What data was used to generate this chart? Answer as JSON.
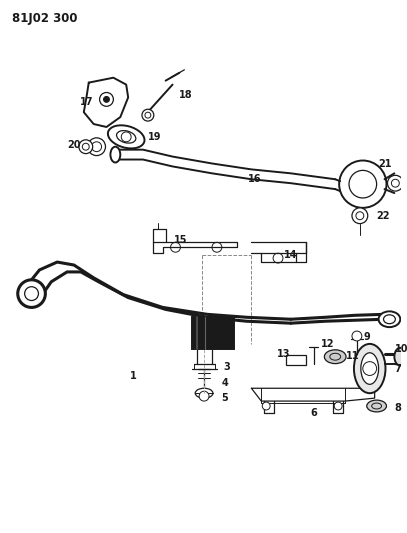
{
  "title": "81J02 300",
  "bg_color": "#ffffff",
  "line_color": "#1a1a1a",
  "title_fontsize": 8.5,
  "label_fontsize": 7,
  "fig_width": 4.07,
  "fig_height": 5.33,
  "dpi": 100
}
